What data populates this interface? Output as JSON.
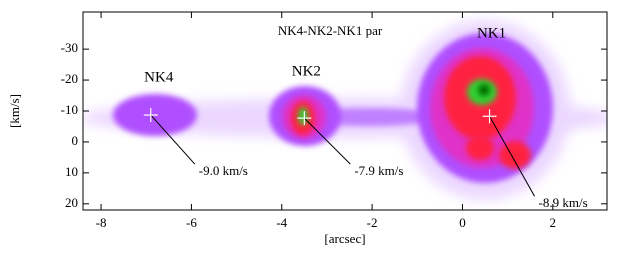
{
  "chart_data": {
    "type": "image",
    "title": "NK4-NK2-NK1 par",
    "x_label": "[arcsec]",
    "y_label": "[km/s]",
    "xlim": [
      -8.4,
      3.2
    ],
    "ylim": [
      22,
      -42
    ],
    "xticks": [
      -8,
      -6,
      -4,
      -2,
      0,
      2
    ],
    "yticks": [
      -30,
      -20,
      -10,
      0,
      10,
      20
    ],
    "marker_color": "#ffffff",
    "points": [
      {
        "label": "NK4",
        "x": -6.9,
        "y": -8.7,
        "annotation": "-9.0 km/s"
      },
      {
        "label": "NK2",
        "x": -3.5,
        "y": -7.7,
        "annotation": "-7.9 km/s"
      },
      {
        "label": "NK1",
        "x": 0.6,
        "y": -8.3,
        "annotation": "-8.9 km/s"
      }
    ]
  }
}
